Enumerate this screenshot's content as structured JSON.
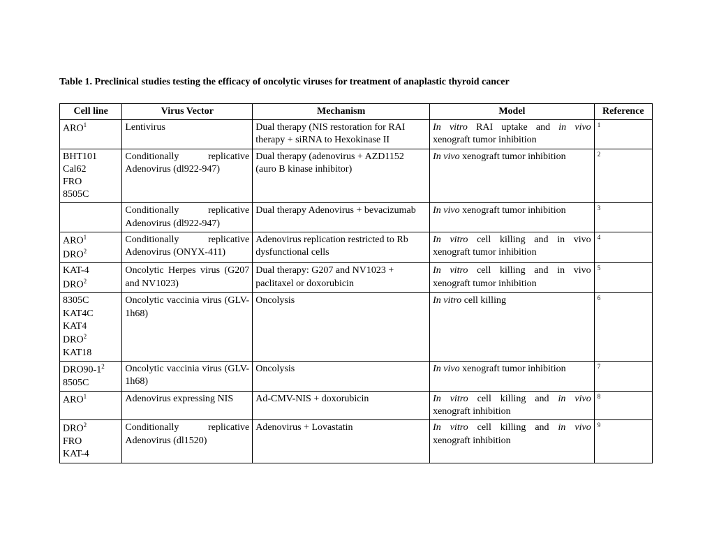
{
  "title": "Table 1. Preclinical studies testing the efficacy of oncolytic viruses for treatment of anaplastic thyroid cancer",
  "headers": {
    "cell_line": "Cell line",
    "virus_vector": "Virus Vector",
    "mechanism": "Mechanism",
    "model": "Model",
    "reference": "Reference"
  },
  "rows": [
    {
      "cell_line_lines": [
        [
          "ARO",
          "1"
        ]
      ],
      "virus_vector": "Lentivirus",
      "mechanism": "Dual therapy (NIS restoration for RAI therapy + siRNA to Hexokinase II",
      "model_html": "<span class='italic'>In vitro</span> RAI uptake and <span class='italic'>in vivo</span> xenograft tumor inhibition",
      "reference": "1"
    },
    {
      "cell_line_lines": [
        [
          "BHT101",
          ""
        ],
        [
          "Cal62",
          ""
        ],
        [
          "FRO",
          ""
        ],
        [
          "8505C",
          ""
        ]
      ],
      "virus_vector": "Conditionally replicative Adenovirus (dl922-947)",
      "mechanism": "Dual therapy (adenovirus + AZD1152 (auro B kinase inhibitor)",
      "model_html": "<span class='italic'>In vivo</span> xenograft tumor inhibition",
      "reference": "2"
    },
    {
      "cell_line_lines": [
        [
          "",
          ""
        ]
      ],
      "virus_vector": "Conditionally replicative Adenovirus (dl922-947)",
      "mechanism": "Dual therapy Adenovirus + bevacizumab",
      "model_html": "<span class='italic'>In vivo</span> xenograft tumor inhibition",
      "reference": "3"
    },
    {
      "cell_line_lines": [
        [
          "ARO",
          "1"
        ],
        [
          "DRO",
          "2"
        ]
      ],
      "virus_vector": "Conditionally replicative Adenovirus (ONYX-411)",
      "mechanism": "Adenovirus replication restricted to Rb dysfunctional cells",
      "model_html": "<span class='italic'>In vitro</span> cell killing and in vivo xenograft tumor inhibition",
      "reference": "4"
    },
    {
      "cell_line_lines": [
        [
          "KAT-4",
          ""
        ],
        [
          "DRO",
          "2"
        ]
      ],
      "virus_vector": "Oncolytic Herpes virus (G207 and NV1023)",
      "mechanism": "Dual therapy: G207 and NV1023 + paclitaxel or doxorubicin",
      "model_html": "<span class='italic'>In vitro</span> cell killing and in vivo xenograft tumor inhibition",
      "reference": "5"
    },
    {
      "cell_line_lines": [
        [
          "8305C",
          ""
        ],
        [
          "KAT4C",
          ""
        ],
        [
          "KAT4",
          ""
        ],
        [
          "DRO",
          "2"
        ],
        [
          "KAT18",
          ""
        ]
      ],
      "virus_vector": "Oncolytic vaccinia virus (GLV-1h68)",
      "mechanism": "Oncolysis",
      "model_html": "<span class='italic'>In vitro</span> cell killing",
      "reference": "6"
    },
    {
      "cell_line_lines": [
        [
          "DRO90-1",
          "2"
        ],
        [
          "8505C",
          ""
        ]
      ],
      "virus_vector": "Oncolytic vaccinia virus (GLV-1h68)",
      "mechanism": "Oncolysis",
      "model_html": "<span class='italic'>In vivo</span> xenograft tumor inhibition",
      "reference": "7"
    },
    {
      "cell_line_lines": [
        [
          "ARO",
          "1"
        ]
      ],
      "virus_vector": "Adenovirus expressing NIS",
      "mechanism": "Ad-CMV-NIS + doxorubicin",
      "model_html": "<span class='italic'>In vitro</span> cell killing and <span class='italic'>in vivo</span> xenograft inhibition",
      "reference": "8"
    },
    {
      "cell_line_lines": [
        [
          "DRO",
          "2"
        ],
        [
          "FRO",
          ""
        ],
        [
          "KAT-4",
          ""
        ]
      ],
      "virus_vector": "Conditionally replicative Adenovirus (dl1520)",
      "mechanism": "Adenovirus + Lovastatin",
      "model_html": "<span class='italic'>In vitro</span> cell killing and <span class='italic'>in vivo</span> xenograft inhibition",
      "reference": "9"
    }
  ]
}
